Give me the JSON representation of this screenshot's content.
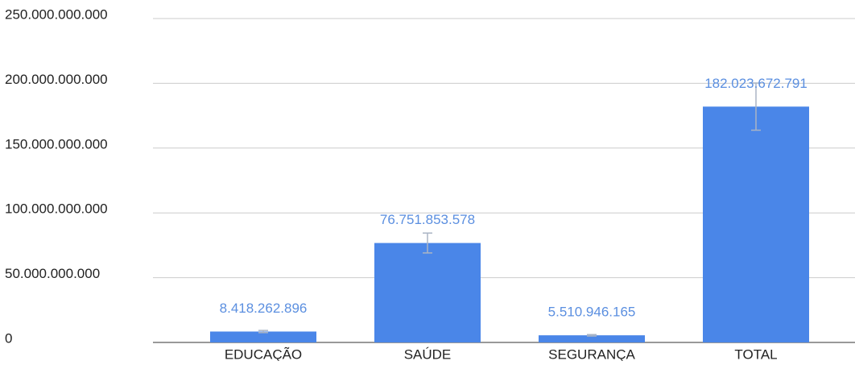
{
  "chart_data": {
    "type": "bar",
    "categories": [
      "EDUCAÇÃO",
      "SAÚDE",
      "SEGURANÇA",
      "TOTAL"
    ],
    "values": [
      8418262896,
      76751853578,
      5510946165,
      182023672791
    ],
    "value_labels": [
      "8.418.262.896",
      "76.751.853.578",
      "5.510.946.165",
      "182.023.672.791"
    ],
    "errors": [
      841826290,
      7675185358,
      551094617,
      18202367279
    ],
    "color": "#4a86e8",
    "ylim": [
      0,
      250000000000
    ],
    "yticks": [
      0,
      {
        "value": 50000000000,
        "label": "50.000.000.000"
      },
      {
        "value": 100000000000,
        "label": "100.000.000.000"
      },
      {
        "value": 150000000000,
        "label": "150.000.000.000"
      },
      {
        "value": 200000000000,
        "label": "200.000.000.000"
      },
      {
        "value": 250000000000,
        "label": "250.000.000.000"
      }
    ],
    "grid": true
  }
}
